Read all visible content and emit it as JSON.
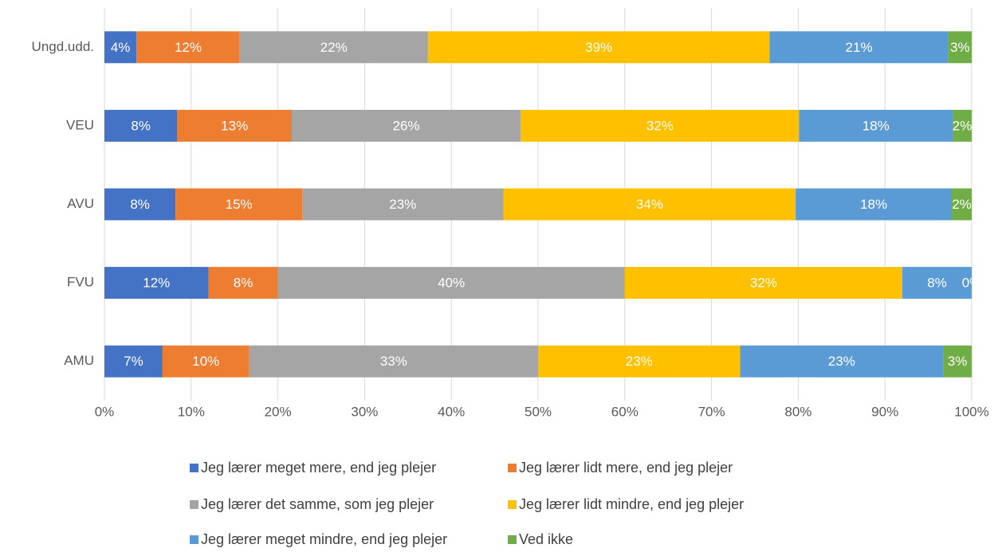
{
  "chart_data": {
    "type": "stacked_bar_horizontal_percent",
    "categories": [
      "Ungd.udd.",
      "VEU",
      "AVU",
      "FVU",
      "AMU"
    ],
    "series": [
      {
        "name": "Jeg lærer meget mere, end jeg plejer",
        "color": "#4472c4",
        "values": [
          3.7,
          8.4,
          8.2,
          12.0,
          6.7
        ],
        "value_labels": [
          "4%",
          "8%",
          "8%",
          "12%",
          "7%"
        ]
      },
      {
        "name": "Jeg lærer lidt mere, end jeg plejer",
        "color": "#ed7d31",
        "values": [
          11.9,
          13.2,
          14.6,
          8.0,
          10.0
        ],
        "value_labels": [
          "12%",
          "13%",
          "15%",
          "8%",
          "10%"
        ]
      },
      {
        "name": "Jeg lærer det samme, som jeg plejer",
        "color": "#a5a5a5",
        "values": [
          21.7,
          26.4,
          23.2,
          40.0,
          33.3
        ],
        "value_labels": [
          "22%",
          "26%",
          "23%",
          "40%",
          "33%"
        ]
      },
      {
        "name": "Jeg lærer lidt mindre, end jeg plejer",
        "color": "#ffc000",
        "values": [
          39.4,
          32.1,
          33.7,
          32.0,
          23.3
        ],
        "value_labels": [
          "39%",
          "32%",
          "34%",
          "32%",
          "23%"
        ]
      },
      {
        "name": "Jeg lærer meget mindre, end jeg plejer",
        "color": "#5b9bd5",
        "values": [
          20.6,
          17.7,
          18.0,
          8.0,
          23.4
        ],
        "value_labels": [
          "21%",
          "18%",
          "18%",
          "8%",
          "23%"
        ]
      },
      {
        "name": "Ved ikke",
        "color": "#70ad47",
        "values": [
          2.7,
          2.2,
          2.3,
          0,
          3.3
        ],
        "value_labels": [
          "3%",
          "2%",
          "2%",
          "0%",
          "3%"
        ]
      }
    ],
    "xlim": [
      0,
      100
    ],
    "xticks": [
      {
        "value": 0,
        "label": "0%"
      },
      {
        "value": 10,
        "label": "10%"
      },
      {
        "value": 20,
        "label": "20%"
      },
      {
        "value": 30,
        "label": "30%"
      },
      {
        "value": 40,
        "label": "40%"
      },
      {
        "value": 50,
        "label": "50%"
      },
      {
        "value": 60,
        "label": "60%"
      },
      {
        "value": 70,
        "label": "70%"
      },
      {
        "value": 80,
        "label": "80%"
      },
      {
        "value": 90,
        "label": "90%"
      },
      {
        "value": 100,
        "label": "100%"
      }
    ],
    "grid": true,
    "legend": "bottom"
  }
}
